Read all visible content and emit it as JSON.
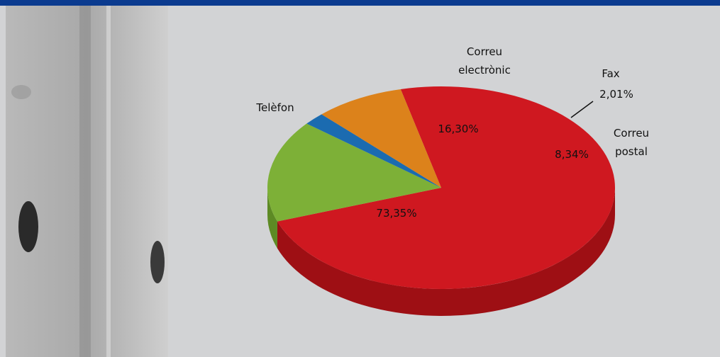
{
  "chart_data": {
    "type": "pie",
    "categories": [
      "Telèfon",
      "Correu electrònic",
      "Fax",
      "Correu postal"
    ],
    "values": [
      73.35,
      16.3,
      2.01,
      8.34
    ],
    "value_labels": [
      "73,35%",
      "16,30%",
      "2,01%",
      "8,34%"
    ],
    "colors": [
      "#cf1820",
      "#7db037",
      "#1b6bb0",
      "#dc821b"
    ],
    "side_colors": [
      "#9e0f14",
      "#5d8a24",
      "#12508a",
      "#a8610f"
    ]
  }
}
